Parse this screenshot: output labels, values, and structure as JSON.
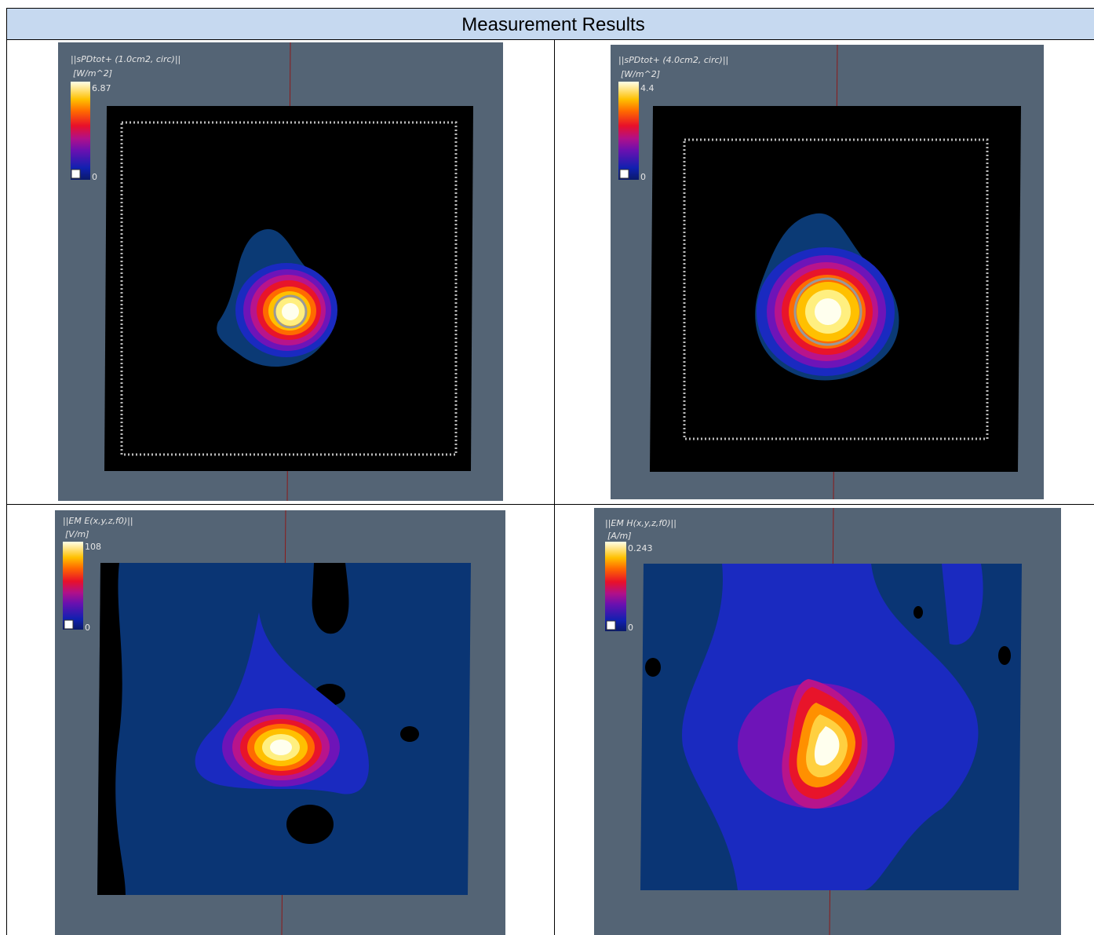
{
  "header": {
    "title": "Measurement Results"
  },
  "panels": [
    {
      "label": "||sPDtot+ (1.0cm2, circ)||",
      "unit": "[W/m^2]",
      "max": 6.87,
      "min": 0
    },
    {
      "label": "||sPDtot+ (4.0cm2, circ)||",
      "unit": "[W/m^2]",
      "max": 4.4,
      "min": 0
    },
    {
      "label": "||EM E(x,y,z,f0)||",
      "unit": "[V/m]",
      "max": 108,
      "min": 0
    },
    {
      "label": "||EM H(x,y,z,f0)||",
      "unit": "[A/m]",
      "max": 0.243,
      "min": 0
    }
  ]
}
